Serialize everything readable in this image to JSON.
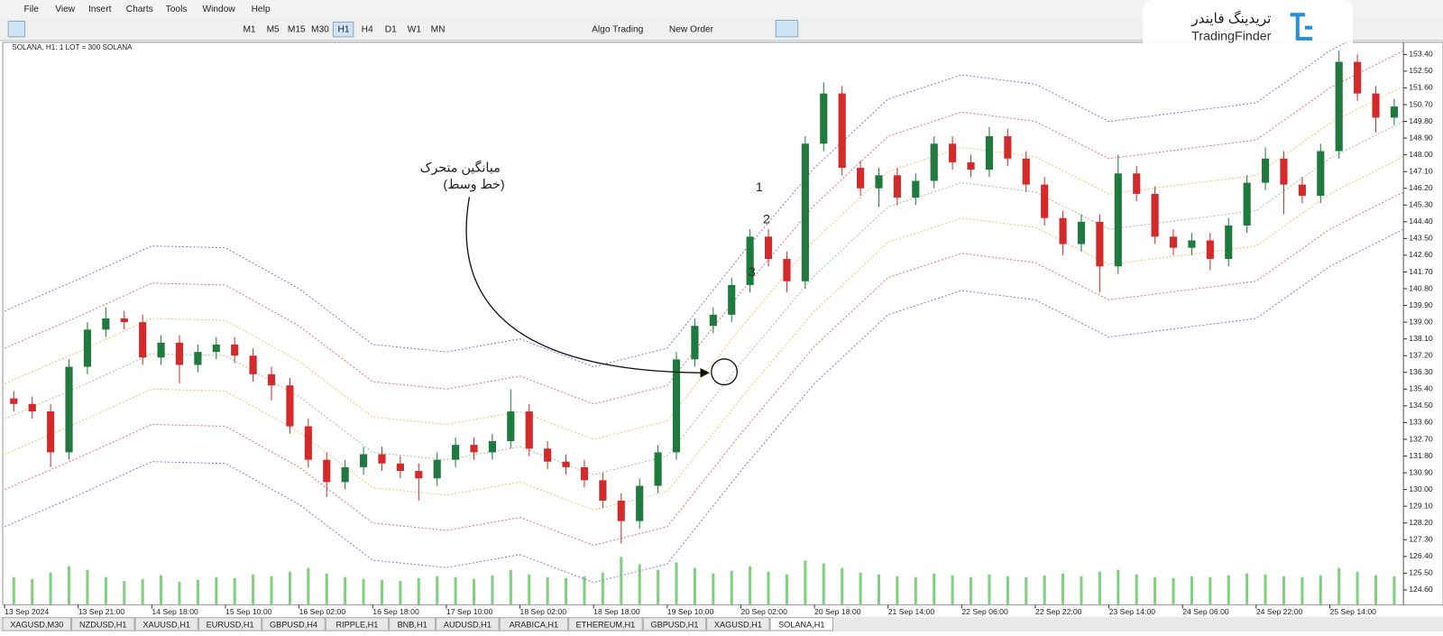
{
  "menu": [
    "File",
    "View",
    "Insert",
    "Charts",
    "Tools",
    "Window",
    "Help"
  ],
  "toolbar": {
    "timeframes": [
      "M1",
      "M5",
      "M15",
      "M30",
      "H1",
      "H4",
      "D1",
      "W1",
      "MN"
    ],
    "algo_trading": "Algo Trading",
    "new_order": "New Order"
  },
  "logo": {
    "fa": "تریدینگ فایندر",
    "en": "TradingFinder"
  },
  "chart_data": {
    "type": "candlestick",
    "header": "SOLANA, H1:  1 LOT = 300 SOLANA",
    "up_color": "#1f7a3e",
    "down_color": "#d42a2a",
    "volume_color": "#7fd17f",
    "open": [
      134.9,
      134.6,
      134.2,
      132.0,
      136.6,
      138.6,
      139.2,
      139.0,
      137.1,
      137.9,
      136.7,
      137.4,
      137.8,
      137.2,
      136.2,
      135.6,
      133.4,
      131.6,
      130.4,
      131.2,
      131.9,
      131.4,
      131.0,
      130.6,
      131.6,
      132.4,
      132.0,
      132.6,
      134.2,
      132.2,
      131.5,
      131.2,
      130.5,
      129.4,
      128.3,
      130.2,
      132.0,
      137.0,
      138.8,
      139.4,
      141.0,
      143.6,
      142.4,
      141.2,
      148.6,
      151.3,
      147.3,
      146.2,
      146.9,
      145.7,
      146.6,
      148.6,
      147.6,
      147.2,
      149.0,
      147.8,
      146.4,
      144.6,
      143.2,
      144.4,
      142.0,
      147.0,
      145.9,
      143.6,
      143.0,
      143.4,
      142.4,
      144.2,
      146.5,
      147.8,
      146.4,
      145.8,
      148.2,
      153.0,
      151.3,
      150.0
    ],
    "high": [
      135.3,
      135.0,
      134.6,
      137.0,
      139.0,
      139.8,
      139.6,
      139.4,
      138.3,
      138.3,
      137.8,
      138.2,
      138.2,
      137.6,
      136.6,
      136.0,
      133.8,
      132.0,
      131.6,
      132.3,
      132.3,
      131.8,
      131.4,
      132.0,
      132.8,
      132.8,
      133.0,
      135.4,
      134.6,
      132.6,
      131.9,
      131.6,
      130.9,
      129.8,
      130.6,
      132.4,
      137.4,
      139.2,
      139.8,
      141.4,
      144.0,
      144.0,
      142.8,
      149.0,
      151.9,
      151.7,
      147.7,
      147.3,
      147.3,
      147.0,
      149.0,
      149.0,
      148.0,
      149.5,
      149.4,
      148.2,
      146.8,
      145.0,
      144.8,
      144.8,
      148.0,
      147.4,
      146.3,
      144.0,
      143.8,
      143.8,
      144.6,
      146.9,
      148.4,
      148.2,
      146.8,
      148.6,
      153.6,
      153.4,
      151.7,
      151.0
    ],
    "low": [
      134.2,
      133.8,
      131.2,
      131.6,
      136.2,
      138.2,
      138.6,
      136.7,
      136.7,
      135.7,
      136.3,
      137.0,
      136.8,
      135.8,
      134.8,
      133.0,
      131.2,
      129.6,
      130.0,
      130.8,
      131.0,
      130.6,
      129.4,
      130.2,
      131.2,
      131.6,
      131.6,
      132.2,
      131.8,
      131.1,
      130.8,
      130.1,
      129.0,
      127.1,
      127.9,
      129.8,
      131.6,
      136.6,
      138.4,
      139.0,
      140.6,
      142.0,
      140.6,
      140.8,
      148.2,
      146.9,
      145.8,
      145.2,
      145.3,
      145.3,
      146.2,
      147.2,
      146.8,
      146.8,
      147.4,
      146.0,
      144.2,
      142.6,
      142.8,
      140.6,
      141.6,
      145.5,
      143.2,
      142.6,
      142.6,
      141.8,
      142.0,
      143.8,
      146.1,
      144.8,
      145.4,
      145.4,
      147.8,
      150.9,
      149.2,
      149.6
    ],
    "close": [
      134.6,
      134.2,
      132.0,
      136.6,
      138.6,
      139.2,
      139.0,
      137.1,
      137.9,
      136.7,
      137.4,
      137.8,
      137.2,
      136.2,
      135.6,
      133.4,
      131.6,
      130.4,
      131.2,
      131.9,
      131.4,
      131.0,
      130.6,
      131.6,
      132.4,
      132.0,
      132.6,
      134.2,
      132.2,
      131.5,
      131.2,
      130.5,
      129.4,
      128.3,
      130.2,
      132.0,
      137.0,
      138.8,
      139.4,
      141.0,
      143.6,
      142.4,
      141.2,
      148.6,
      151.3,
      147.3,
      146.2,
      146.9,
      145.7,
      146.6,
      148.6,
      147.6,
      147.2,
      149.0,
      147.8,
      146.4,
      144.6,
      143.2,
      144.4,
      142.0,
      147.0,
      145.9,
      143.6,
      143.0,
      143.4,
      142.4,
      144.2,
      146.5,
      147.8,
      146.4,
      145.8,
      148.2,
      153.0,
      151.3,
      150.0,
      150.6
    ],
    "volume": [
      30,
      28,
      35,
      42,
      38,
      30,
      26,
      28,
      32,
      25,
      27,
      30,
      29,
      33,
      31,
      36,
      40,
      34,
      30,
      28,
      27,
      26,
      29,
      31,
      30,
      28,
      32,
      38,
      33,
      30,
      29,
      31,
      35,
      52,
      44,
      38,
      46,
      40,
      34,
      37,
      42,
      36,
      33,
      48,
      45,
      40,
      35,
      33,
      31,
      30,
      34,
      32,
      30,
      33,
      31,
      30,
      32,
      34,
      31,
      36,
      38,
      33,
      30,
      29,
      31,
      30,
      32,
      34,
      33,
      31,
      30,
      32,
      40,
      36,
      32,
      31
    ],
    "bands": [
      {
        "color": "#7d80d8",
        "values": [
          139.6,
          141.3,
          143.1,
          143.0,
          140.8,
          137.8,
          137.4,
          138.1,
          136.6,
          137.6,
          142.6,
          147.3,
          151.0,
          152.3,
          151.8,
          149.8,
          150.3,
          150.8,
          153.6,
          155.6
        ]
      },
      {
        "color": "#e27777",
        "values": [
          137.6,
          139.3,
          141.1,
          141.0,
          138.8,
          135.8,
          135.4,
          136.1,
          134.6,
          135.6,
          140.6,
          145.3,
          149.0,
          150.3,
          149.8,
          147.8,
          148.3,
          148.8,
          151.6,
          153.6
        ]
      },
      {
        "color": "#f0c46a",
        "values": [
          135.7,
          137.4,
          139.2,
          139.1,
          136.9,
          133.9,
          133.5,
          134.2,
          132.7,
          133.7,
          138.7,
          143.4,
          147.1,
          148.4,
          147.9,
          145.9,
          146.4,
          146.9,
          149.7,
          151.7
        ]
      },
      {
        "color": "#9cc79c",
        "values": [
          133.8,
          135.5,
          137.3,
          137.2,
          135.0,
          132.0,
          131.6,
          132.3,
          130.8,
          131.8,
          136.8,
          141.5,
          145.2,
          146.5,
          146.0,
          144.0,
          144.5,
          145.0,
          147.8,
          149.8
        ]
      },
      {
        "color": "#f0c46a",
        "values": [
          131.9,
          133.6,
          135.4,
          135.3,
          133.1,
          130.1,
          129.7,
          130.4,
          128.9,
          129.9,
          134.9,
          139.6,
          143.3,
          144.6,
          144.1,
          142.1,
          142.6,
          143.1,
          145.9,
          147.9
        ]
      },
      {
        "color": "#e27777",
        "values": [
          130.0,
          131.7,
          133.5,
          133.4,
          131.2,
          128.2,
          127.8,
          128.5,
          127.0,
          128.0,
          133.0,
          137.7,
          141.4,
          142.7,
          142.2,
          140.2,
          140.7,
          141.2,
          144.0,
          146.0
        ]
      },
      {
        "color": "#7d80d8",
        "values": [
          128.0,
          129.7,
          131.5,
          131.4,
          129.2,
          126.2,
          125.8,
          126.5,
          125.0,
          126.0,
          131.0,
          135.7,
          139.4,
          140.7,
          140.2,
          138.2,
          138.7,
          139.2,
          142.0,
          144.0
        ]
      }
    ],
    "ylim": [
      123.8,
      154.05
    ],
    "yticks": [
      {
        "value": 153.4,
        "label": "153.40"
      },
      {
        "value": 152.5,
        "label": "152.50"
      },
      {
        "value": 151.6,
        "label": "151.60"
      },
      {
        "value": 150.7,
        "label": "150.70"
      },
      {
        "value": 149.8,
        "label": "149.80"
      },
      {
        "value": 148.9,
        "label": "148.90"
      },
      {
        "value": 148.0,
        "label": "148.00"
      },
      {
        "value": 147.1,
        "label": "147.10"
      },
      {
        "value": 146.2,
        "label": "146.20"
      },
      {
        "value": 145.3,
        "label": "145.30"
      },
      {
        "value": 144.4,
        "label": "144.40"
      },
      {
        "value": 143.5,
        "label": "143.50"
      },
      {
        "value": 142.6,
        "label": "142.60"
      },
      {
        "value": 141.7,
        "label": "141.70"
      },
      {
        "value": 140.8,
        "label": "140.80"
      },
      {
        "value": 139.9,
        "label": "139.90"
      },
      {
        "value": 139.0,
        "label": "139.00"
      },
      {
        "value": 138.1,
        "label": "138.10"
      },
      {
        "value": 137.2,
        "label": "137.20"
      },
      {
        "value": 136.3,
        "label": "136.30"
      },
      {
        "value": 135.4,
        "label": "135.40"
      },
      {
        "value": 134.5,
        "label": "134.50"
      },
      {
        "value": 133.6,
        "label": "133.60"
      },
      {
        "value": 132.7,
        "label": "132.70"
      },
      {
        "value": 131.8,
        "label": "131.80"
      },
      {
        "value": 130.9,
        "label": "130.90"
      },
      {
        "value": 130.0,
        "label": "130.00"
      },
      {
        "value": 129.1,
        "label": "129.10"
      },
      {
        "value": 128.2,
        "label": "128.20"
      },
      {
        "value": 127.3,
        "label": "127.30"
      },
      {
        "value": 126.4,
        "label": "126.40"
      },
      {
        "value": 125.5,
        "label": "125.50"
      },
      {
        "value": 124.6,
        "label": "124.60"
      }
    ],
    "xticks": [
      "13 Sep 2024",
      "13 Sep 21:00",
      "14 Sep 18:00",
      "15 Sep 10:00",
      "16 Sep 02:00",
      "16 Sep 18:00",
      "17 Sep 10:00",
      "18 Sep 02:00",
      "18 Sep 18:00",
      "19 Sep 10:00",
      "20 Sep 02:00",
      "20 Sep 18:00",
      "21 Sep 14:00",
      "22 Sep 06:00",
      "22 Sep 22:00",
      "23 Sep 14:00",
      "24 Sep 06:00",
      "24 Sep 22:00",
      "25 Sep 14:00"
    ],
    "annotation": {
      "title": "میانگین متحرک",
      "subtitle": "(خط وسط)",
      "points": [
        "1",
        "2",
        "3"
      ]
    }
  },
  "tabs": [
    "XAGUSD,M30",
    "NZDUSD,H1",
    "XAUUSD,H1",
    "EURUSD,H1",
    "GBPUSD,H4",
    "RIPPLE,H1",
    "BNB,H1",
    "AUDUSD,H1",
    "ARABICA,H1",
    "ETHEREUM,H1",
    "GBPUSD,H1",
    "XAGUSD,H1",
    "SOLANA,H1"
  ]
}
